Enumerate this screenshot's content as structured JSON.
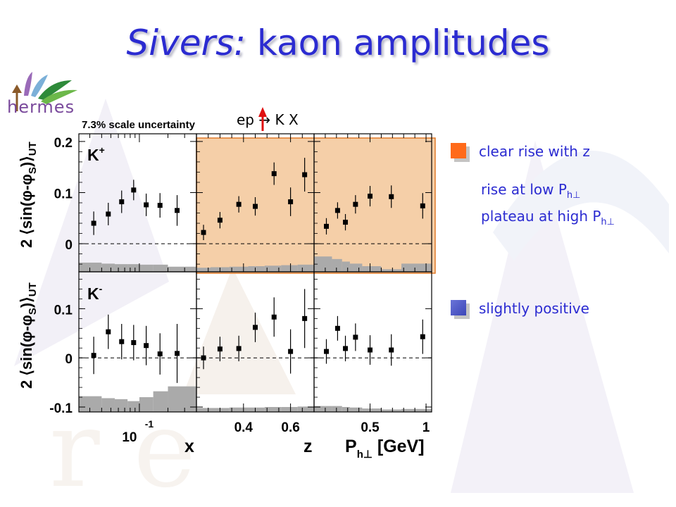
{
  "title": {
    "italic": "Sivers:",
    "rest": " kaon amplitudes"
  },
  "logo": {
    "text": "hermes"
  },
  "scale_note": "7.3% scale uncertainty",
  "reaction": {
    "text": "ep",
    "arrow": "→",
    "rest": " K X"
  },
  "notes": {
    "clear_rise": "clear rise with z",
    "rise_low": "rise at low P",
    "rise_low_sub": "h⊥",
    "plateau_high": "plateau at high P",
    "plateau_high_sub": "h⊥",
    "slightly_positive": "slightly positive"
  },
  "colors": {
    "title": "#2b2bd1",
    "orange_bullet": "#ff6a1a",
    "blue_bullet": "#4a57c8",
    "highlight": "#f5cfa8",
    "highlight_border": "#e07a2a",
    "band": "#aaaaaa"
  },
  "chart_data": {
    "type": "scatter",
    "ylabel_text": "2 ⟨sin(φ-φ",
    "ylabel_sub": "S",
    "ylabel_end": ")⟩",
    "ylabel_ut": "UT",
    "rows": [
      {
        "name": "K+",
        "label_main": "K",
        "label_sup": "+",
        "ylim": [
          -0.055,
          0.215
        ],
        "yticks": [
          {
            "v": 0.2,
            "label": "0.2"
          },
          {
            "v": 0.1,
            "label": "0.1"
          },
          {
            "v": 0,
            "label": "0"
          }
        ]
      },
      {
        "name": "K-",
        "label_main": "K",
        "label_sup": "-",
        "ylim": [
          -0.11,
          0.175
        ],
        "yticks": [
          {
            "v": 0.1,
            "label": "0.1"
          },
          {
            "v": 0,
            "label": "0"
          },
          {
            "v": -0.1,
            "label": "-0.1"
          }
        ]
      }
    ],
    "columns": [
      {
        "var": "x",
        "axis_label": "x",
        "scale": "log",
        "xlim": [
          0.023,
          0.4
        ],
        "xticks": [
          {
            "v": 0.1,
            "label": "10",
            "sup": "-1"
          }
        ],
        "points": [
          [
            {
              "x": 0.033,
              "y": 0.04,
              "err": 0.023
            },
            {
              "x": 0.047,
              "y": 0.058,
              "err": 0.022
            },
            {
              "x": 0.065,
              "y": 0.082,
              "err": 0.022
            },
            {
              "x": 0.087,
              "y": 0.105,
              "err": 0.02
            },
            {
              "x": 0.118,
              "y": 0.076,
              "err": 0.022
            },
            {
              "x": 0.165,
              "y": 0.075,
              "err": 0.024
            },
            {
              "x": 0.25,
              "y": 0.065,
              "err": 0.03
            }
          ],
          [
            {
              "x": 0.033,
              "y": 0.005,
              "err": 0.038
            },
            {
              "x": 0.047,
              "y": 0.053,
              "err": 0.035
            },
            {
              "x": 0.065,
              "y": 0.033,
              "err": 0.036
            },
            {
              "x": 0.087,
              "y": 0.031,
              "err": 0.036
            },
            {
              "x": 0.118,
              "y": 0.025,
              "err": 0.04
            },
            {
              "x": 0.165,
              "y": 0.008,
              "err": 0.042
            },
            {
              "x": 0.25,
              "y": 0.009,
              "err": 0.06
            }
          ]
        ],
        "bands": [
          [
            {
              "x0": 0.023,
              "x1": 0.04,
              "h": 0.018
            },
            {
              "x0": 0.04,
              "x1": 0.055,
              "h": 0.016
            },
            {
              "x0": 0.055,
              "x1": 0.075,
              "h": 0.015
            },
            {
              "x0": 0.075,
              "x1": 0.1,
              "h": 0.015
            },
            {
              "x0": 0.1,
              "x1": 0.14,
              "h": 0.014
            },
            {
              "x0": 0.14,
              "x1": 0.2,
              "h": 0.014
            },
            {
              "x0": 0.2,
              "x1": 0.4,
              "h": 0.01
            }
          ],
          [
            {
              "x0": 0.023,
              "x1": 0.04,
              "h": 0.032
            },
            {
              "x0": 0.04,
              "x1": 0.055,
              "h": 0.028
            },
            {
              "x0": 0.055,
              "x1": 0.075,
              "h": 0.026
            },
            {
              "x0": 0.075,
              "x1": 0.1,
              "h": 0.022
            },
            {
              "x0": 0.1,
              "x1": 0.14,
              "h": 0.03
            },
            {
              "x0": 0.14,
              "x1": 0.2,
              "h": 0.042
            },
            {
              "x0": 0.2,
              "x1": 0.4,
              "h": 0.052
            }
          ]
        ]
      },
      {
        "var": "z",
        "axis_label": "z",
        "scale": "linear",
        "xlim": [
          0.2,
          0.7
        ],
        "xticks": [
          {
            "v": 0.4,
            "label": "0.4"
          },
          {
            "v": 0.6,
            "label": "0.6"
          }
        ],
        "points": [
          [
            {
              "x": 0.23,
              "y": 0.022,
              "err": 0.015
            },
            {
              "x": 0.3,
              "y": 0.046,
              "err": 0.016
            },
            {
              "x": 0.38,
              "y": 0.077,
              "err": 0.016
            },
            {
              "x": 0.45,
              "y": 0.073,
              "err": 0.018
            },
            {
              "x": 0.53,
              "y": 0.137,
              "err": 0.022
            },
            {
              "x": 0.6,
              "y": 0.082,
              "err": 0.028
            },
            {
              "x": 0.66,
              "y": 0.135,
              "err": 0.033
            }
          ],
          [
            {
              "x": 0.23,
              "y": 0.0,
              "err": 0.023
            },
            {
              "x": 0.3,
              "y": 0.018,
              "err": 0.025
            },
            {
              "x": 0.38,
              "y": 0.019,
              "err": 0.026
            },
            {
              "x": 0.45,
              "y": 0.062,
              "err": 0.03
            },
            {
              "x": 0.53,
              "y": 0.083,
              "err": 0.04
            },
            {
              "x": 0.6,
              "y": 0.013,
              "err": 0.045
            },
            {
              "x": 0.66,
              "y": 0.08,
              "err": 0.06
            }
          ]
        ],
        "bands": [
          [
            {
              "x0": 0.2,
              "x1": 0.26,
              "h": 0.008
            },
            {
              "x0": 0.26,
              "x1": 0.34,
              "h": 0.009
            },
            {
              "x0": 0.34,
              "x1": 0.42,
              "h": 0.01
            },
            {
              "x0": 0.42,
              "x1": 0.49,
              "h": 0.011
            },
            {
              "x0": 0.49,
              "x1": 0.56,
              "h": 0.012
            },
            {
              "x0": 0.56,
              "x1": 0.63,
              "h": 0.013
            },
            {
              "x0": 0.63,
              "x1": 0.7,
              "h": 0.014
            }
          ],
          [
            {
              "x0": 0.2,
              "x1": 0.26,
              "h": 0.008
            },
            {
              "x0": 0.26,
              "x1": 0.34,
              "h": 0.008
            },
            {
              "x0": 0.34,
              "x1": 0.42,
              "h": 0.009
            },
            {
              "x0": 0.42,
              "x1": 0.49,
              "h": 0.009
            },
            {
              "x0": 0.49,
              "x1": 0.56,
              "h": 0.01
            },
            {
              "x0": 0.56,
              "x1": 0.63,
              "h": 0.01
            },
            {
              "x0": 0.63,
              "x1": 0.7,
              "h": 0.011
            }
          ]
        ]
      },
      {
        "var": "Ph",
        "axis_label": "P",
        "axis_label_sub": "h⊥",
        "axis_label_unit": " [GeV]",
        "scale": "linear",
        "xlim": [
          0.0,
          1.05
        ],
        "xticks": [
          {
            "v": 0.5,
            "label": "0.5"
          },
          {
            "v": 1.0,
            "label": "1"
          }
        ],
        "points": [
          [
            {
              "x": 0.11,
              "y": 0.034,
              "err": 0.016
            },
            {
              "x": 0.21,
              "y": 0.065,
              "err": 0.016
            },
            {
              "x": 0.28,
              "y": 0.042,
              "err": 0.016
            },
            {
              "x": 0.37,
              "y": 0.077,
              "err": 0.018
            },
            {
              "x": 0.5,
              "y": 0.093,
              "err": 0.02
            },
            {
              "x": 0.69,
              "y": 0.092,
              "err": 0.022
            },
            {
              "x": 0.97,
              "y": 0.074,
              "err": 0.025
            }
          ],
          [
            {
              "x": 0.11,
              "y": 0.013,
              "err": 0.025
            },
            {
              "x": 0.21,
              "y": 0.06,
              "err": 0.025
            },
            {
              "x": 0.28,
              "y": 0.019,
              "err": 0.026
            },
            {
              "x": 0.37,
              "y": 0.042,
              "err": 0.028
            },
            {
              "x": 0.5,
              "y": 0.016,
              "err": 0.03
            },
            {
              "x": 0.69,
              "y": 0.016,
              "err": 0.032
            },
            {
              "x": 0.97,
              "y": 0.043,
              "err": 0.035
            }
          ]
        ],
        "bands": [
          [
            {
              "x0": 0.0,
              "x1": 0.16,
              "h": 0.03
            },
            {
              "x0": 0.16,
              "x1": 0.25,
              "h": 0.025
            },
            {
              "x0": 0.25,
              "x1": 0.32,
              "h": 0.02
            },
            {
              "x0": 0.32,
              "x1": 0.43,
              "h": 0.016
            },
            {
              "x0": 0.43,
              "x1": 0.6,
              "h": 0.011
            },
            {
              "x0": 0.6,
              "x1": 0.78,
              "h": 0.005
            },
            {
              "x0": 0.78,
              "x1": 1.05,
              "h": 0.016
            }
          ],
          [
            {
              "x0": 0.0,
              "x1": 0.16,
              "h": 0.012
            },
            {
              "x0": 0.16,
              "x1": 0.25,
              "h": 0.012
            },
            {
              "x0": 0.25,
              "x1": 0.32,
              "h": 0.01
            },
            {
              "x0": 0.32,
              "x1": 0.43,
              "h": 0.009
            },
            {
              "x0": 0.43,
              "x1": 0.6,
              "h": 0.007
            },
            {
              "x0": 0.6,
              "x1": 0.78,
              "h": 0.005
            },
            {
              "x0": 0.78,
              "x1": 1.05,
              "h": 0.006
            }
          ]
        ]
      }
    ]
  }
}
